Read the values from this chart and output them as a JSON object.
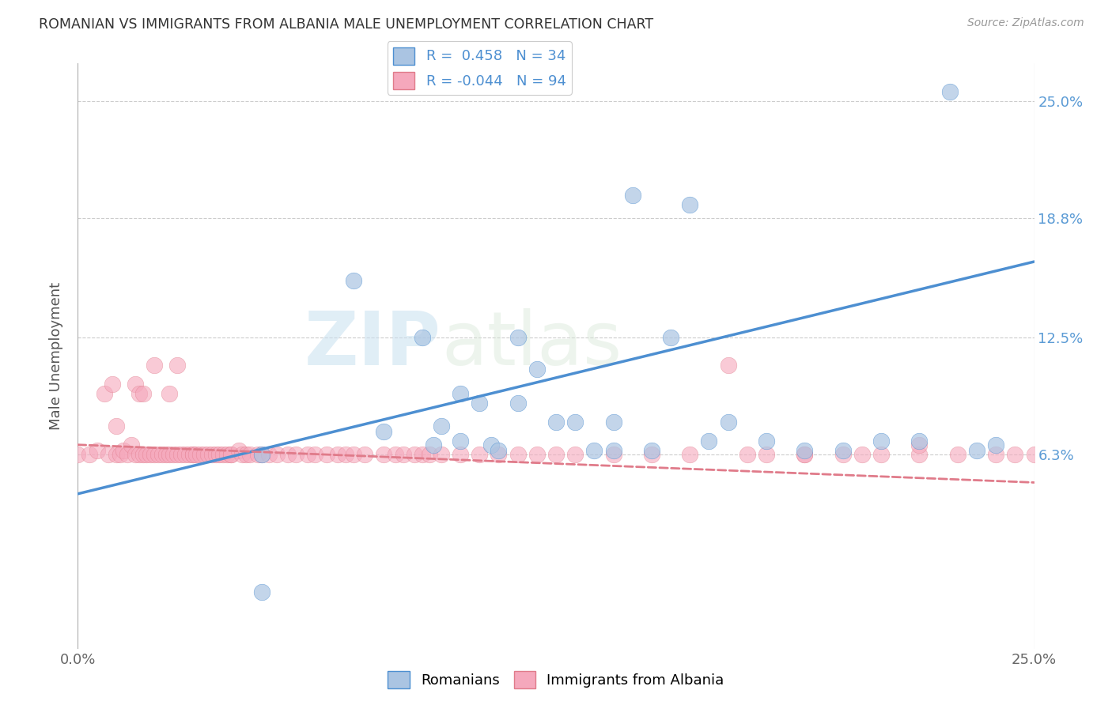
{
  "title": "ROMANIAN VS IMMIGRANTS FROM ALBANIA MALE UNEMPLOYMENT CORRELATION CHART",
  "source": "Source: ZipAtlas.com",
  "ylabel": "Male Unemployment",
  "xlim": [
    0.0,
    0.25
  ],
  "ylim": [
    -0.04,
    0.27
  ],
  "xtick_labels": [
    "0.0%",
    "25.0%"
  ],
  "ytick_labels": [
    "6.3%",
    "12.5%",
    "18.8%",
    "25.0%"
  ],
  "ytick_values": [
    0.063,
    0.125,
    0.188,
    0.25
  ],
  "xtick_values": [
    0.0,
    0.25
  ],
  "watermark_zip": "ZIP",
  "watermark_atlas": "atlas",
  "legend_r1": "R =  0.458   N = 34",
  "legend_r2": "R = -0.044   N = 94",
  "color_romanian": "#aac4e2",
  "color_albania": "#f5a8bc",
  "line_color_romanian": "#4d8fd1",
  "line_color_albania": "#e07b8a",
  "romanian_scatter_x": [
    0.048,
    0.048,
    0.072,
    0.08,
    0.09,
    0.093,
    0.095,
    0.1,
    0.1,
    0.105,
    0.108,
    0.11,
    0.115,
    0.115,
    0.12,
    0.125,
    0.13,
    0.135,
    0.14,
    0.14,
    0.145,
    0.15,
    0.155,
    0.16,
    0.165,
    0.17,
    0.18,
    0.19,
    0.2,
    0.21,
    0.22,
    0.228,
    0.235,
    0.24
  ],
  "romanian_scatter_y": [
    0.063,
    -0.01,
    0.155,
    0.075,
    0.125,
    0.068,
    0.078,
    0.07,
    0.095,
    0.09,
    0.068,
    0.065,
    0.125,
    0.09,
    0.108,
    0.08,
    0.08,
    0.065,
    0.065,
    0.08,
    0.2,
    0.065,
    0.125,
    0.195,
    0.07,
    0.08,
    0.07,
    0.065,
    0.065,
    0.07,
    0.07,
    0.255,
    0.065,
    0.068
  ],
  "albania_scatter_x": [
    0.0,
    0.003,
    0.005,
    0.007,
    0.008,
    0.009,
    0.01,
    0.01,
    0.011,
    0.012,
    0.013,
    0.014,
    0.015,
    0.015,
    0.016,
    0.016,
    0.017,
    0.017,
    0.018,
    0.019,
    0.02,
    0.02,
    0.021,
    0.022,
    0.023,
    0.024,
    0.024,
    0.025,
    0.026,
    0.026,
    0.027,
    0.028,
    0.029,
    0.03,
    0.03,
    0.031,
    0.032,
    0.033,
    0.034,
    0.035,
    0.036,
    0.037,
    0.038,
    0.039,
    0.04,
    0.04,
    0.042,
    0.043,
    0.044,
    0.045,
    0.047,
    0.048,
    0.05,
    0.052,
    0.055,
    0.057,
    0.06,
    0.062,
    0.065,
    0.068,
    0.07,
    0.072,
    0.075,
    0.08,
    0.083,
    0.085,
    0.088,
    0.09,
    0.092,
    0.095,
    0.1,
    0.105,
    0.11,
    0.115,
    0.12,
    0.125,
    0.13,
    0.14,
    0.15,
    0.16,
    0.175,
    0.19,
    0.205,
    0.22,
    0.17,
    0.18,
    0.19,
    0.2,
    0.21,
    0.22,
    0.23,
    0.24,
    0.245,
    0.25
  ],
  "albania_scatter_y": [
    0.063,
    0.063,
    0.065,
    0.095,
    0.063,
    0.1,
    0.063,
    0.078,
    0.063,
    0.065,
    0.063,
    0.068,
    0.063,
    0.1,
    0.063,
    0.095,
    0.063,
    0.095,
    0.063,
    0.063,
    0.063,
    0.11,
    0.063,
    0.063,
    0.063,
    0.063,
    0.095,
    0.063,
    0.063,
    0.11,
    0.063,
    0.063,
    0.063,
    0.063,
    0.063,
    0.063,
    0.063,
    0.063,
    0.063,
    0.063,
    0.063,
    0.063,
    0.063,
    0.063,
    0.063,
    0.063,
    0.065,
    0.063,
    0.063,
    0.063,
    0.063,
    0.063,
    0.063,
    0.063,
    0.063,
    0.063,
    0.063,
    0.063,
    0.063,
    0.063,
    0.063,
    0.063,
    0.063,
    0.063,
    0.063,
    0.063,
    0.063,
    0.063,
    0.063,
    0.063,
    0.063,
    0.063,
    0.063,
    0.063,
    0.063,
    0.063,
    0.063,
    0.063,
    0.063,
    0.063,
    0.063,
    0.063,
    0.063,
    0.063,
    0.11,
    0.063,
    0.063,
    0.063,
    0.063,
    0.068,
    0.063,
    0.063,
    0.063,
    0.063
  ],
  "romanian_line_x": [
    0.0,
    0.25
  ],
  "romanian_line_y": [
    0.042,
    0.165
  ],
  "albania_line_x": [
    0.0,
    0.25
  ],
  "albania_line_y": [
    0.068,
    0.048
  ]
}
